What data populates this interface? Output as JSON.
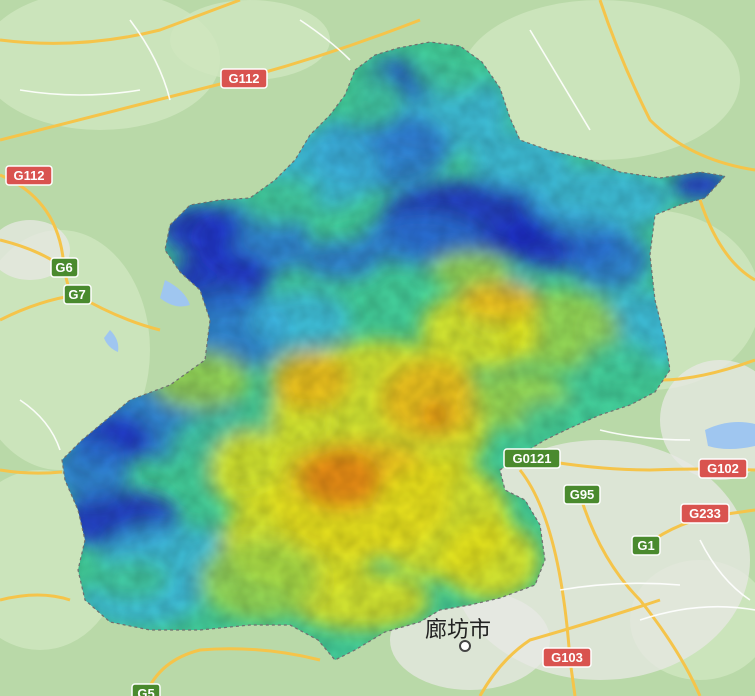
{
  "map": {
    "colors": {
      "land": "#b9d9a8",
      "land_light": "#cfe6bf",
      "urban": "#e8e8e4",
      "water": "#9fc6f0",
      "road": "#f5c44a",
      "road_minor": "#ffffff",
      "shield_red": "#d9534f",
      "shield_green": "#4a8a2e"
    },
    "shields": [
      {
        "label": "G112",
        "color": "red"
      },
      {
        "label": "G112",
        "color": "red"
      },
      {
        "label": "G6",
        "color": "green"
      },
      {
        "label": "G7",
        "color": "green"
      },
      {
        "label": "G0121",
        "color": "green"
      },
      {
        "label": "G95",
        "color": "green"
      },
      {
        "label": "G102",
        "color": "red"
      },
      {
        "label": "G233",
        "color": "red"
      },
      {
        "label": "G1",
        "color": "green"
      },
      {
        "label": "G103",
        "color": "red"
      },
      {
        "label": "G5",
        "color": "green"
      }
    ],
    "places": [
      {
        "label": "廊坊市"
      }
    ],
    "heatmap": {
      "palette": [
        "#1e2ccf",
        "#2f7de0",
        "#3fbfe8",
        "#46d6a0",
        "#a7e04c",
        "#f2ee1c",
        "#f8c21a",
        "#f08a14"
      ]
    }
  }
}
